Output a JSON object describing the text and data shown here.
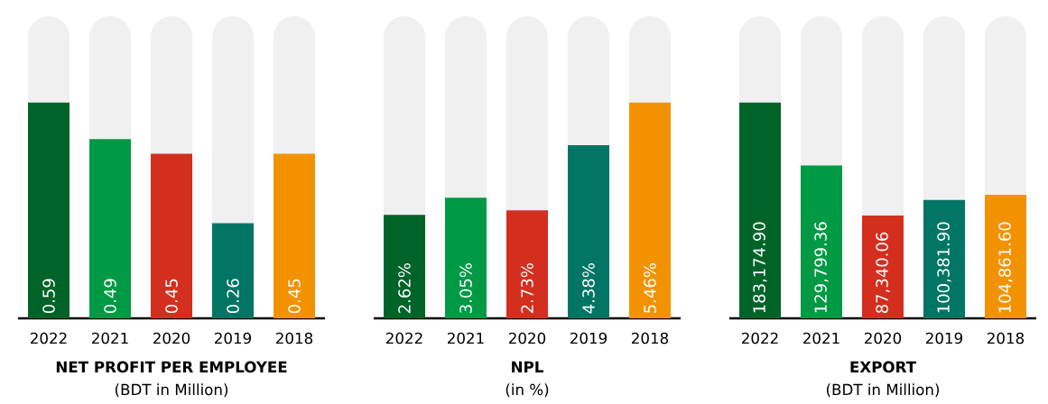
{
  "chart_data": [
    {
      "type": "bar",
      "title": "NET PROFIT PER EMPLOYEE",
      "subtitle": "(BDT in Million)",
      "categories": [
        "2022",
        "2021",
        "2020",
        "2019",
        "2018"
      ],
      "values": [
        0.59,
        0.49,
        0.45,
        0.26,
        0.45
      ],
      "value_labels": [
        "0.59",
        "0.49",
        "0.45",
        "0.26",
        "0.45"
      ],
      "colors": [
        "#006428",
        "#009a44",
        "#d42e1e",
        "#007565",
        "#f39200"
      ]
    },
    {
      "type": "bar",
      "title": "NPL",
      "subtitle": "(in %)",
      "categories": [
        "2022",
        "2021",
        "2020",
        "2019",
        "2018"
      ],
      "values": [
        2.62,
        3.05,
        2.73,
        4.38,
        5.46
      ],
      "value_labels": [
        "2.62%",
        "3.05%",
        "2.73%",
        "4.38%",
        "5.46%"
      ],
      "colors": [
        "#006428",
        "#009a44",
        "#d42e1e",
        "#007565",
        "#f39200"
      ]
    },
    {
      "type": "bar",
      "title": "EXPORT",
      "subtitle": "(BDT in Million)",
      "categories": [
        "2022",
        "2021",
        "2020",
        "2019",
        "2018"
      ],
      "values": [
        183174.9,
        129799.36,
        87340.06,
        100381.9,
        104861.6
      ],
      "value_labels": [
        "183,174.90",
        "129,799.36",
        "87,340.06",
        "100,381.90",
        "104,861.60"
      ],
      "colors": [
        "#006428",
        "#009a44",
        "#d42e1e",
        "#007565",
        "#f39200"
      ]
    }
  ]
}
